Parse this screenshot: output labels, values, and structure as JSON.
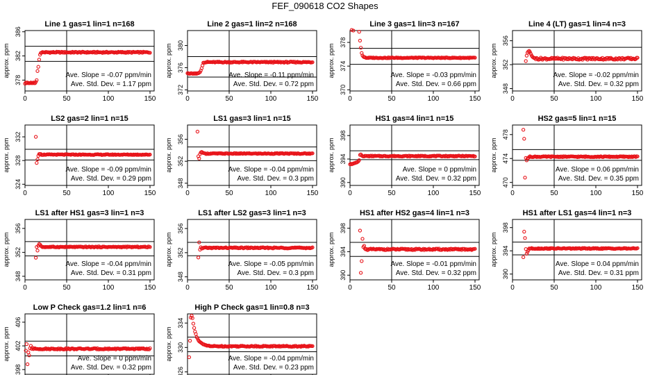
{
  "page": {
    "title": "FEF_090618  CO2 Shapes"
  },
  "style": {
    "point_color": "#e8141a",
    "line_color": "#000000"
  },
  "chart_data": [
    {
      "type": "scatter",
      "title": "Line 1 gas=1 lin=1 n=168",
      "ylabel": "approx. ppm",
      "xlim": [
        0,
        155
      ],
      "ylim": [
        376.2,
        386.2
      ],
      "xticks": [
        0,
        50,
        100,
        150
      ],
      "yticks": [
        378,
        382,
        386
      ],
      "vline": 50,
      "hlines": [
        381.1,
        383.6
      ],
      "points": [
        [
          0,
          377.4
        ],
        [
          1,
          377.6
        ],
        [
          2,
          377.5
        ],
        [
          3,
          377.6
        ],
        [
          4,
          377.5
        ],
        [
          5,
          377.5
        ],
        [
          6,
          377.5
        ],
        [
          7,
          377.6
        ],
        [
          8,
          377.5
        ],
        [
          9,
          377.5
        ],
        [
          10,
          377.6
        ],
        [
          11,
          377.5
        ],
        [
          12,
          377.5
        ],
        [
          13,
          377.7
        ],
        [
          14,
          378.0
        ],
        [
          15,
          379.5
        ],
        [
          16,
          380.2
        ],
        [
          17,
          381.4
        ],
        [
          18,
          382.2
        ],
        [
          19,
          382.5
        ]
      ],
      "plateau": {
        "x_start": 20,
        "x_end": 150,
        "step": 1,
        "y": 382.6,
        "noise": 0.1
      },
      "annotations": [
        "Ave. Slope = -0.07 ppm/min",
        "Ave. Std. Dev. = 1.17 ppm"
      ]
    },
    {
      "type": "scatter",
      "title": "Line 2 gas=1 lin=2 n=168",
      "ylabel": "approx. ppm",
      "xlim": [
        0,
        155
      ],
      "ylim": [
        371.8,
        382.7
      ],
      "xticks": [
        0,
        50,
        100,
        150
      ],
      "yticks": [
        372,
        376,
        380
      ],
      "vline": 50,
      "hlines": [
        374.3,
        378.0
      ],
      "points": [
        [
          0,
          375.0
        ],
        [
          1,
          375.0
        ],
        [
          2,
          374.9
        ],
        [
          3,
          374.9
        ],
        [
          4,
          375.0
        ],
        [
          5,
          375.0
        ],
        [
          6,
          374.9
        ],
        [
          7,
          374.9
        ],
        [
          8,
          375.0
        ],
        [
          9,
          374.9
        ],
        [
          10,
          375.0
        ],
        [
          11,
          374.9
        ],
        [
          12,
          375.0
        ],
        [
          13,
          375.0
        ],
        [
          14,
          375.1
        ],
        [
          15,
          375.2
        ],
        [
          16,
          375.5
        ],
        [
          17,
          375.9
        ],
        [
          18,
          376.4
        ],
        [
          19,
          376.9
        ]
      ],
      "plateau": {
        "x_start": 20,
        "x_end": 150,
        "step": 1,
        "y": 377.0,
        "noise": 0.1
      },
      "annotations": [
        "Ave. Slope = -0.11 ppm/min",
        "Ave. Std. Dev. = 0.72 ppm"
      ]
    },
    {
      "type": "scatter",
      "title": "Line 3 gas=1 lin=3 n=167",
      "ylabel": "approx. ppm",
      "xlim": [
        0,
        155
      ],
      "ylim": [
        369.8,
        380.0
      ],
      "xticks": [
        0,
        50,
        100,
        150
      ],
      "yticks": [
        370,
        374,
        378
      ],
      "vline": 50,
      "hlines": [
        374.3,
        377.0
      ],
      "points": [
        [
          2,
          380.1
        ],
        [
          4,
          380.0
        ],
        [
          11,
          379.8
        ],
        [
          12,
          378.3
        ],
        [
          13,
          377.1
        ],
        [
          14,
          376.2
        ],
        [
          15,
          375.8
        ],
        [
          16,
          375.6
        ],
        [
          17,
          375.5
        ],
        [
          18,
          375.5
        ],
        [
          19,
          375.4
        ]
      ],
      "plateau": {
        "x_start": 20,
        "x_end": 150,
        "step": 1,
        "y": 375.4,
        "noise": 0.07
      },
      "annotations": [
        "Ave. Slope = -0.03 ppm/min",
        "Ave. Std. Dev. = 0.66 ppm"
      ]
    },
    {
      "type": "scatter",
      "title": "Line 4 (LT) gas=1 lin=4 n=3",
      "ylabel": "approx. ppm",
      "xlim": [
        0,
        155
      ],
      "ylim": [
        347.6,
        357.7
      ],
      "xticks": [
        0,
        50,
        100,
        150
      ],
      "yticks": [
        348,
        352,
        356
      ],
      "vline": 50,
      "hlines": [
        352.1,
        354.9
      ],
      "points": [
        [
          16,
          352.6
        ],
        [
          17,
          353.5
        ],
        [
          18,
          354.0
        ],
        [
          19,
          354.2
        ],
        [
          20,
          354.3
        ],
        [
          21,
          354.1
        ],
        [
          22,
          353.8
        ],
        [
          23,
          353.5
        ],
        [
          24,
          353.3
        ],
        [
          25,
          353.2
        ],
        [
          26,
          353.1
        ],
        [
          27,
          353.1
        ]
      ],
      "plateau": {
        "x_start": 28,
        "x_end": 150,
        "step": 1,
        "y": 353.0,
        "noise": 0.18
      },
      "annotations": [
        "Ave. Slope = -0.02 ppm/min",
        "Ave. Std. Dev. = 0.32 ppm"
      ]
    },
    {
      "type": "scatter",
      "title": "LS2 gas=2 lin=1 n=15",
      "ylabel": "approx. ppm",
      "xlim": [
        0,
        155
      ],
      "ylim": [
        323.8,
        334.0
      ],
      "xticks": [
        0,
        50,
        100,
        150
      ],
      "yticks": [
        324,
        328,
        332
      ],
      "vline": 50,
      "hlines": [
        328.1,
        329.9
      ],
      "points": [
        [
          13,
          332.0
        ],
        [
          14,
          327.6
        ],
        [
          15,
          328.2
        ],
        [
          16,
          328.8
        ],
        [
          17,
          329.1
        ],
        [
          18,
          329.1
        ],
        [
          19,
          329.1
        ]
      ],
      "plateau": {
        "x_start": 20,
        "x_end": 150,
        "step": 1,
        "y": 329.0,
        "noise": 0.07
      },
      "annotations": [
        "Ave. Slope = -0.09 ppm/min",
        "Ave. Std. Dev. = 0.29 ppm"
      ]
    },
    {
      "type": "scatter",
      "title": "LS1 gas=3 lin=1 n=15",
      "ylabel": "approx. ppm",
      "xlim": [
        0,
        155
      ],
      "ylim": [
        347.6,
        358.6
      ],
      "xticks": [
        0,
        50,
        100,
        150
      ],
      "yticks": [
        348,
        352,
        356
      ],
      "vline": 50,
      "hlines": [
        352.1,
        354.6
      ],
      "points": [
        [
          12,
          357.4
        ],
        [
          13,
          352.9
        ],
        [
          14,
          352.5
        ],
        [
          15,
          353.3
        ],
        [
          16,
          353.6
        ],
        [
          17,
          353.7
        ],
        [
          18,
          353.6
        ],
        [
          19,
          353.5
        ]
      ],
      "plateau": {
        "x_start": 20,
        "x_end": 150,
        "step": 1,
        "y": 353.4,
        "noise": 0.08
      },
      "annotations": [
        "Ave. Slope = -0.04 ppm/min",
        "Ave. Std. Dev. = 0.3 ppm"
      ]
    },
    {
      "type": "scatter",
      "title": "HS1 gas=4 lin=1 n=15",
      "ylabel": "approx. ppm",
      "xlim": [
        0,
        155
      ],
      "ylim": [
        389.5,
        399.8
      ],
      "xticks": [
        0,
        50,
        100,
        150
      ],
      "yticks": [
        390,
        394,
        398
      ],
      "vline": 50,
      "hlines": [
        393.9,
        395.4
      ],
      "points": [
        [
          0,
          393.1
        ],
        [
          1,
          393.2
        ],
        [
          2,
          393.1
        ],
        [
          3,
          393.2
        ],
        [
          4,
          393.2
        ],
        [
          5,
          393.3
        ],
        [
          6,
          393.3
        ],
        [
          7,
          393.4
        ],
        [
          8,
          393.4
        ],
        [
          9,
          393.5
        ],
        [
          10,
          393.6
        ],
        [
          11,
          393.8
        ],
        [
          12,
          394.7
        ],
        [
          13,
          394.8
        ],
        [
          14,
          394.6
        ],
        [
          15,
          394.5
        ]
      ],
      "plateau": {
        "x_start": 16,
        "x_end": 150,
        "step": 1,
        "y": 394.5,
        "noise": 0.08
      },
      "annotations": [
        "Ave. Slope = 0 ppm/min",
        "Ave. Std. Dev. = 0.32 ppm"
      ]
    },
    {
      "type": "scatter",
      "title": "HS2 gas=5 lin=1 n=15",
      "ylabel": "approx. ppm",
      "xlim": [
        0,
        155
      ],
      "ylim": [
        469.5,
        479.6
      ],
      "xticks": [
        0,
        50,
        100,
        150
      ],
      "yticks": [
        470,
        474,
        478
      ],
      "vline": 50,
      "hlines": [
        473.7,
        475.5
      ],
      "points": [
        [
          13,
          478.8
        ],
        [
          14,
          477.3
        ],
        [
          15,
          470.8
        ],
        [
          16,
          474.1
        ],
        [
          17,
          473.7
        ],
        [
          18,
          474.0
        ],
        [
          19,
          474.1
        ]
      ],
      "plateau": {
        "x_start": 20,
        "x_end": 150,
        "step": 1,
        "y": 474.3,
        "noise": 0.08
      },
      "annotations": [
        "Ave. Slope = 0.06 ppm/min",
        "Ave. Std. Dev. = 0.35 ppm"
      ]
    },
    {
      "type": "scatter",
      "title": "LS1 after HS1 gas=3 lin=1 n=3",
      "ylabel": "approx. ppm",
      "xlim": [
        0,
        155
      ],
      "ylim": [
        347.4,
        357.5
      ],
      "xticks": [
        0,
        50,
        100,
        150
      ],
      "yticks": [
        348,
        352,
        356
      ],
      "vline": 50,
      "hlines": [
        351.4,
        353.8
      ],
      "points": [
        [
          13,
          351.1
        ],
        [
          14,
          352.9
        ],
        [
          15,
          352.3
        ],
        [
          16,
          353.1
        ],
        [
          17,
          353.4
        ],
        [
          18,
          353.3
        ],
        [
          19,
          353.1
        ]
      ],
      "plateau": {
        "x_start": 20,
        "x_end": 150,
        "step": 1,
        "y": 352.9,
        "noise": 0.08
      },
      "annotations": [
        "Ave. Slope = -0.04 ppm/min",
        "Ave. Std. Dev. = 0.31 ppm"
      ]
    },
    {
      "type": "scatter",
      "title": "LS1 after LS2 gas=3 lin=1 n=3",
      "ylabel": "approx. ppm",
      "xlim": [
        0,
        155
      ],
      "ylim": [
        347.5,
        357.5
      ],
      "xticks": [
        0,
        50,
        100,
        150
      ],
      "yticks": [
        348,
        352,
        356
      ],
      "vline": 50,
      "hlines": [
        351.5,
        353.7
      ],
      "points": [
        [
          13,
          351.2
        ],
        [
          14,
          353.7
        ],
        [
          15,
          352.5
        ],
        [
          16,
          352.9
        ],
        [
          17,
          352.7
        ],
        [
          18,
          352.7
        ],
        [
          19,
          352.8
        ]
      ],
      "plateau": {
        "x_start": 20,
        "x_end": 150,
        "step": 1,
        "y": 352.8,
        "noise": 0.09
      },
      "annotations": [
        "Ave. Slope = -0.05 ppm/min",
        "Ave. Std. Dev. = 0.3 ppm"
      ]
    },
    {
      "type": "scatter",
      "title": "HS1 after HS2 gas=4 lin=1 n=3",
      "ylabel": "approx. ppm",
      "xlim": [
        0,
        155
      ],
      "ylim": [
        389.2,
        399.5
      ],
      "xticks": [
        0,
        50,
        100,
        150
      ],
      "yticks": [
        390,
        394,
        398
      ],
      "vline": 50,
      "hlines": [
        393.2,
        395.6
      ],
      "points": [
        [
          12,
          397.6
        ],
        [
          13,
          390.4
        ],
        [
          14,
          392.4
        ],
        [
          15,
          396.2
        ],
        [
          16,
          394.8
        ],
        [
          17,
          395.0
        ],
        [
          18,
          394.5
        ],
        [
          19,
          394.4
        ]
      ],
      "plateau": {
        "x_start": 20,
        "x_end": 150,
        "step": 1,
        "y": 394.4,
        "noise": 0.12
      },
      "annotations": [
        "Ave. Slope = -0.01 ppm/min",
        "Ave. Std. Dev. = 0.32 ppm"
      ]
    },
    {
      "type": "scatter",
      "title": "HS1 after LS1 gas=4 lin=1 n=3",
      "ylabel": "approx. ppm",
      "xlim": [
        0,
        155
      ],
      "ylim": [
        389.0,
        399.4
      ],
      "xticks": [
        0,
        50,
        100,
        150
      ],
      "yticks": [
        390,
        394,
        398
      ],
      "vline": 50,
      "hlines": [
        393.3,
        395.5
      ],
      "points": [
        [
          13,
          392.9
        ],
        [
          14,
          397.3
        ],
        [
          15,
          396.2
        ],
        [
          16,
          394.3
        ],
        [
          17,
          393.5
        ],
        [
          18,
          393.8
        ],
        [
          19,
          394.1
        ]
      ],
      "plateau": {
        "x_start": 20,
        "x_end": 150,
        "step": 1,
        "y": 394.4,
        "noise": 0.08
      },
      "annotations": [
        "Ave. Slope = 0.04 ppm/min",
        "Ave. Std. Dev. = 0.31 ppm"
      ]
    },
    {
      "type": "scatter",
      "title": "Low P Check gas=1.2 lin=1 n=6",
      "ylabel": "approx. ppm",
      "xlim": [
        0,
        155
      ],
      "ylim": [
        397.2,
        407.4
      ],
      "xticks": [
        0,
        50,
        100,
        150
      ],
      "yticks": [
        398,
        402,
        406
      ],
      "vline": 50,
      "hlines": [
        400.3,
        402.8
      ],
      "points": [
        [
          1,
          401.2
        ],
        [
          2,
          402.3
        ],
        [
          3,
          398.9
        ],
        [
          4,
          400.9
        ],
        [
          5,
          400.4
        ],
        [
          6,
          401.6
        ],
        [
          7,
          402.0
        ],
        [
          8,
          401.5
        ],
        [
          9,
          401.7
        ]
      ],
      "plateau": {
        "x_start": 10,
        "x_end": 150,
        "step": 1,
        "y": 401.5,
        "noise": 0.1
      },
      "annotations": [
        "Ave. Slope = 0 ppm/min",
        "Ave. Std. Dev. = 0.32 ppm"
      ]
    },
    {
      "type": "scatter",
      "title": "High P Check gas=1 lin=0.8 n=3",
      "ylabel": "approx. ppm",
      "xlim": [
        0,
        155
      ],
      "ylim": [
        325.6,
        335.5
      ],
      "xticks": [
        0,
        50,
        100,
        150
      ],
      "yticks": [
        326,
        330,
        334
      ],
      "vline": 50,
      "hlines": [
        329.3,
        331.7
      ],
      "points": [
        [
          2,
          328.4
        ],
        [
          3,
          331.1
        ],
        [
          4,
          334.9
        ],
        [
          5,
          335.2
        ],
        [
          6,
          334.8
        ],
        [
          7,
          333.9
        ],
        [
          8,
          333.2
        ],
        [
          9,
          332.6
        ],
        [
          10,
          332.2
        ],
        [
          11,
          331.7
        ],
        [
          12,
          331.5
        ],
        [
          13,
          331.2
        ],
        [
          14,
          331.0
        ],
        [
          15,
          330.9
        ],
        [
          16,
          330.8
        ],
        [
          17,
          330.7
        ],
        [
          18,
          330.6
        ],
        [
          19,
          330.5
        ],
        [
          20,
          330.5
        ],
        [
          21,
          330.4
        ],
        [
          22,
          330.4
        ],
        [
          23,
          330.3
        ],
        [
          24,
          330.3
        ],
        [
          25,
          330.3
        ],
        [
          26,
          330.3
        ],
        [
          27,
          330.2
        ],
        [
          28,
          330.2
        ],
        [
          29,
          330.2
        ]
      ],
      "plateau": {
        "x_start": 30,
        "x_end": 150,
        "step": 1,
        "y": 330.2,
        "noise": 0.09
      },
      "annotations": [
        "Ave. Slope = -0.04 ppm/min",
        "Ave. Std. Dev. = 0.23 ppm"
      ]
    }
  ]
}
